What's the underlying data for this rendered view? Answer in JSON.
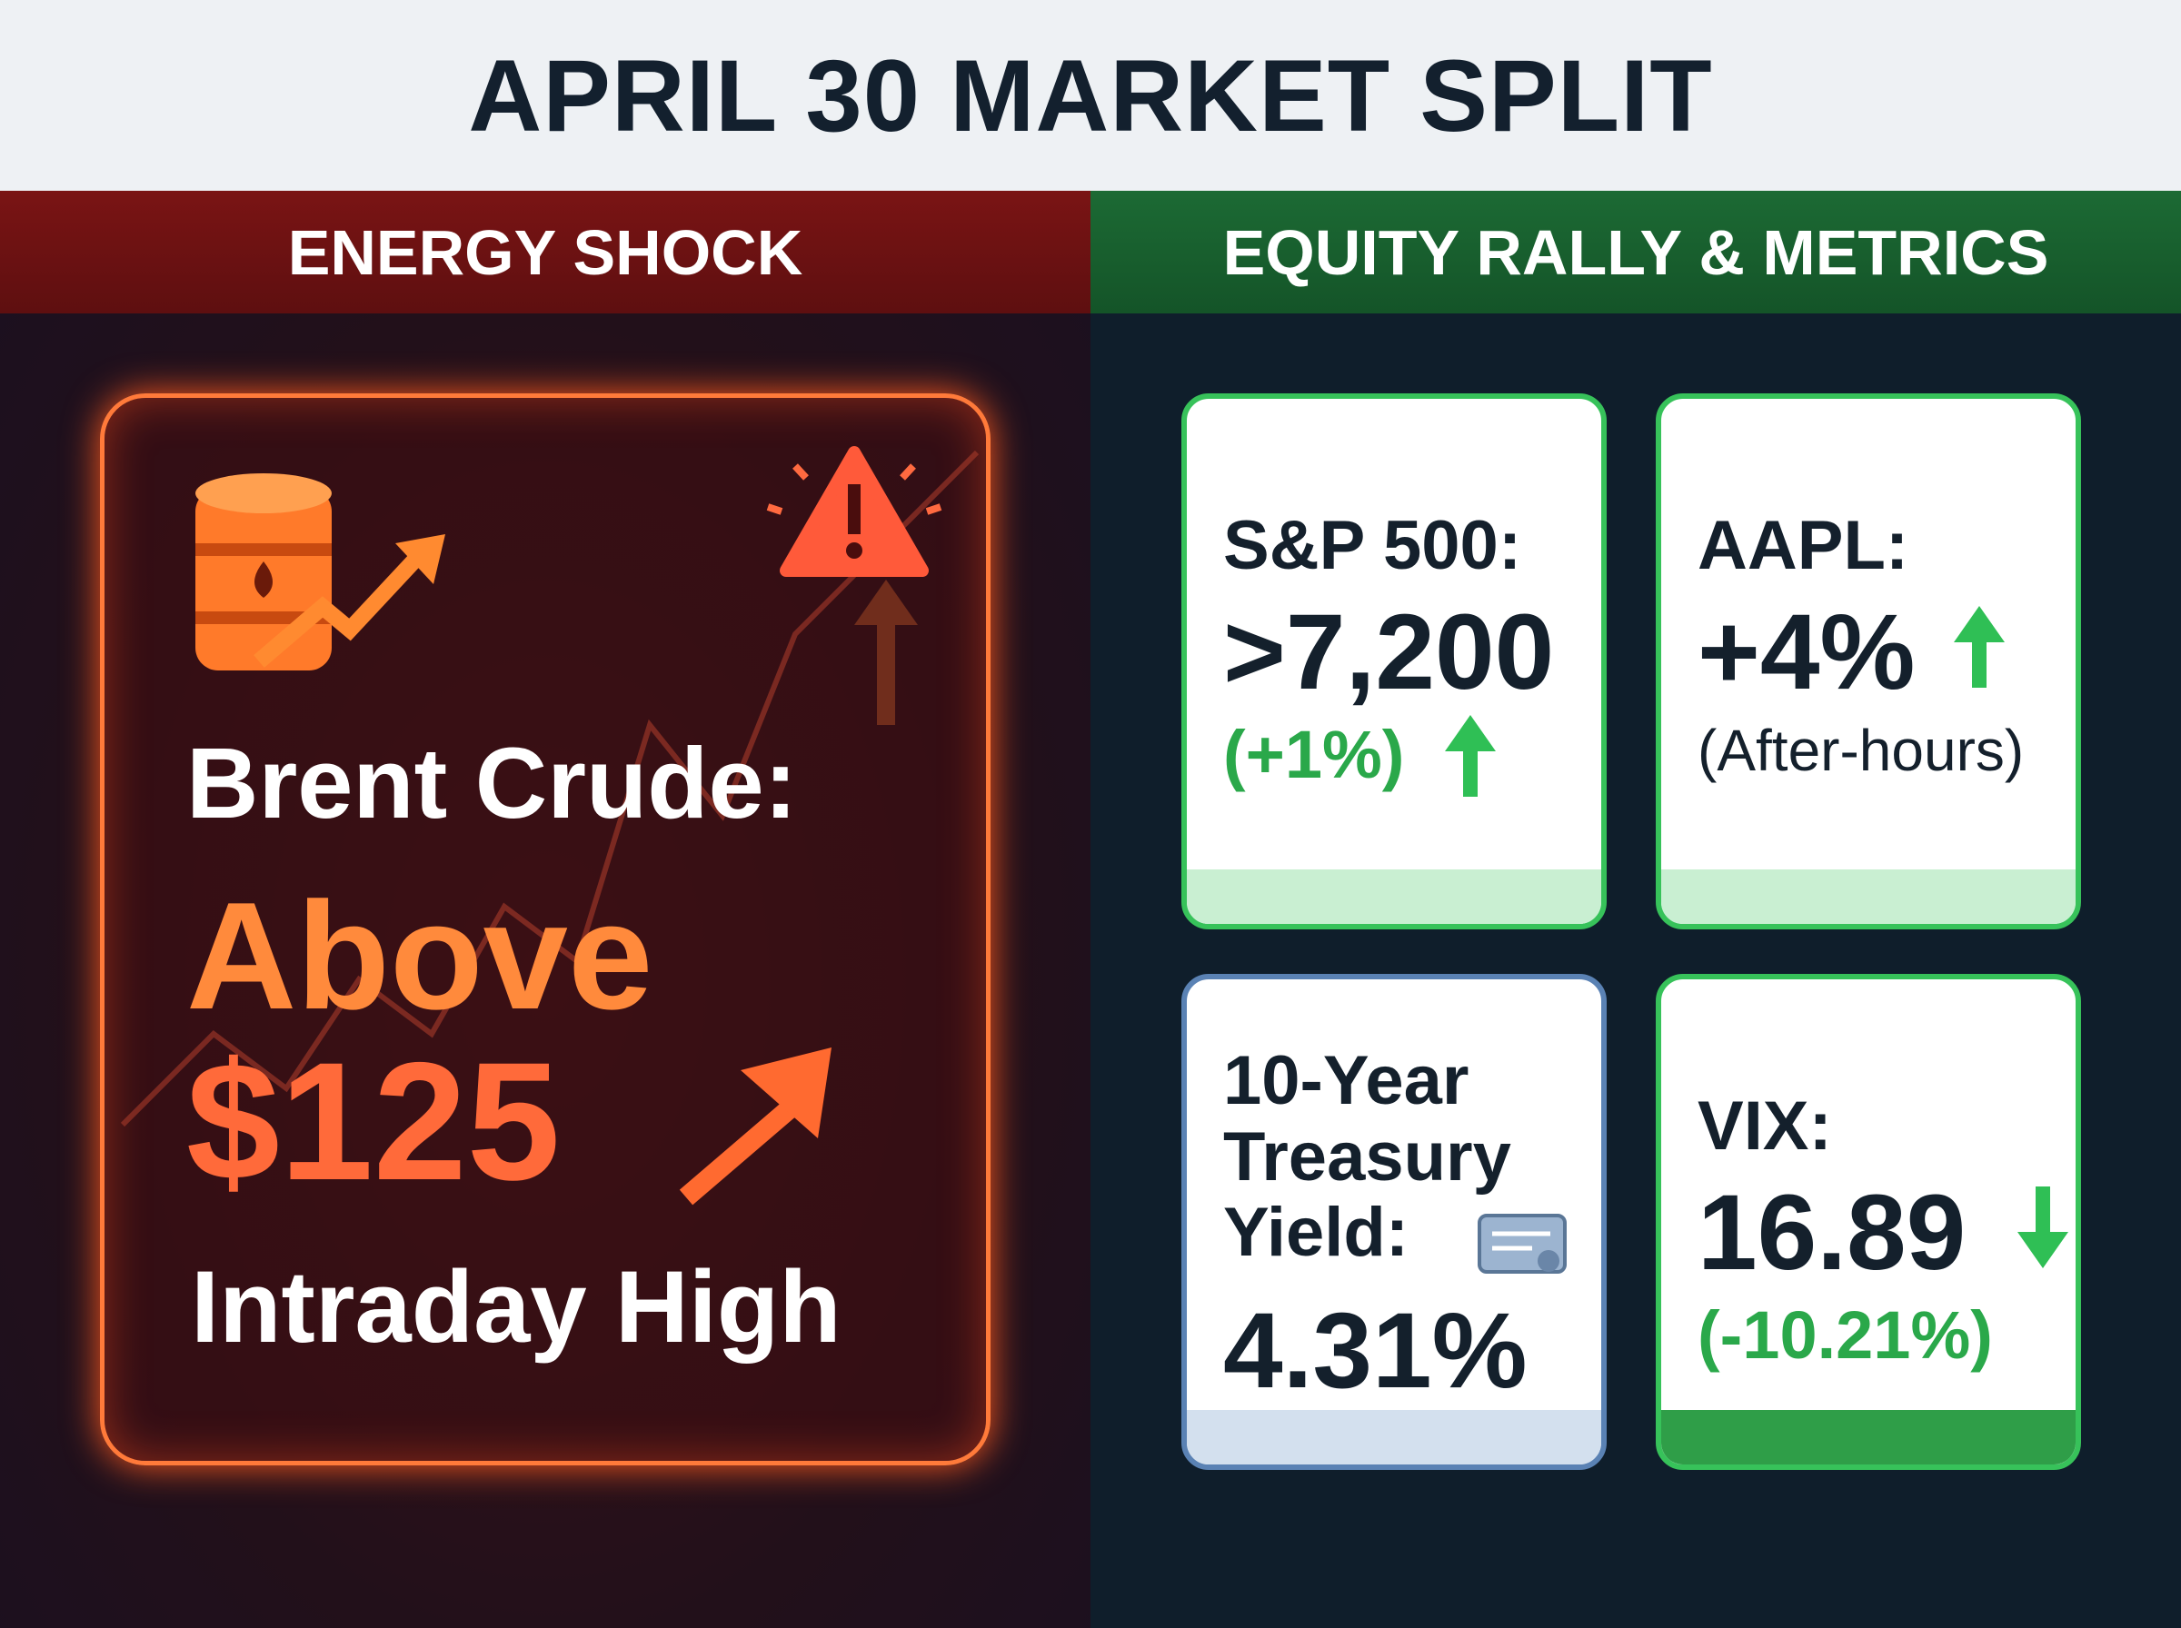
{
  "header": {
    "title": "APRIL 30 MARKET SPLIT"
  },
  "energy": {
    "heading": "ENERGY SHOCK",
    "label": "Brent Crude:",
    "qualifier": "Above",
    "price": "$125",
    "note": "Intraday High"
  },
  "equity": {
    "heading": "EQUITY RALLY & METRICS",
    "cards": [
      {
        "label": "S&P 500:",
        "value": ">7,200",
        "change": "(+1%)"
      },
      {
        "label": "AAPL:",
        "value": "+4%",
        "change": "(After-hours)"
      },
      {
        "label": "10-Year Treasury Yield:",
        "value": "4.31%"
      },
      {
        "label": "VIX:",
        "value": "16.89",
        "change": "(-10.21%)"
      }
    ]
  }
}
